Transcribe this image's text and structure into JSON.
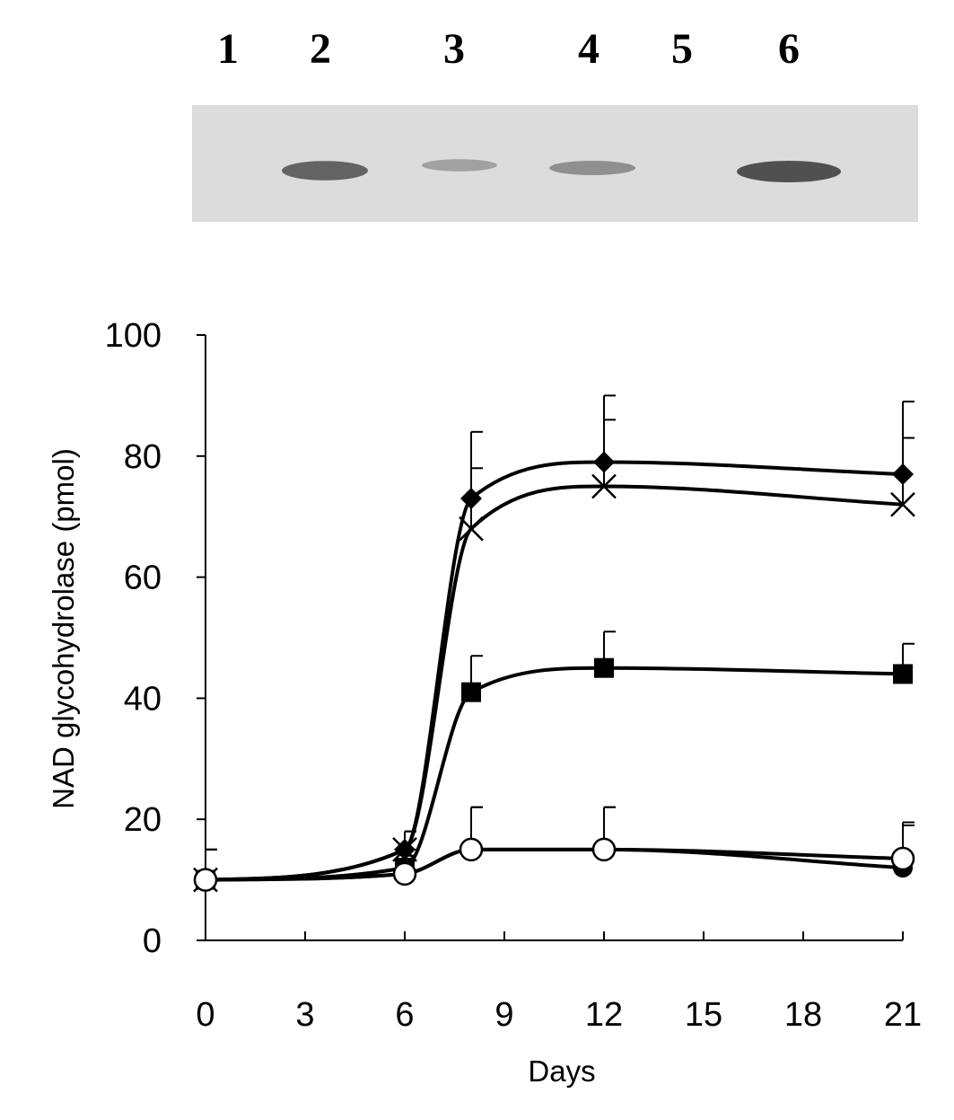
{
  "blot": {
    "lane_labels": [
      "1",
      "2",
      "3",
      "4",
      "5",
      "6"
    ],
    "band_intensity": [
      0.0,
      0.85,
      0.35,
      0.5,
      0.0,
      1.0
    ]
  },
  "chart_data": {
    "type": "line",
    "title": "",
    "xlabel": "Days",
    "ylabel": "NAD glycohydrolase (pmol)",
    "xlim": [
      0,
      21
    ],
    "ylim": [
      0,
      100
    ],
    "xticks": [
      "0",
      "3",
      "6",
      "9",
      "12",
      "15",
      "18",
      "21"
    ],
    "yticks": [
      "0",
      "20",
      "40",
      "60",
      "80",
      "100"
    ],
    "grid": false,
    "legend": "none",
    "x": [
      0,
      6,
      8,
      12,
      21
    ],
    "series": [
      {
        "marker": "diamond",
        "values": [
          10,
          15,
          73,
          79,
          77
        ],
        "error": [
          5,
          3,
          11,
          11,
          12
        ]
      },
      {
        "marker": "x",
        "values": [
          10,
          15,
          68,
          75,
          72
        ],
        "error": [
          5,
          3,
          10,
          11,
          11
        ]
      },
      {
        "marker": "square",
        "values": [
          10,
          12,
          41,
          45,
          44
        ],
        "error": [
          5,
          3,
          6,
          6,
          5
        ]
      },
      {
        "marker": "filled-circle",
        "values": [
          10,
          11,
          15,
          15,
          12
        ],
        "error": [
          5,
          3,
          7,
          7,
          7
        ]
      },
      {
        "marker": "open-circle",
        "values": [
          10,
          11,
          15,
          15,
          13.5
        ],
        "error": [
          5,
          3,
          7,
          7,
          6
        ]
      }
    ]
  }
}
